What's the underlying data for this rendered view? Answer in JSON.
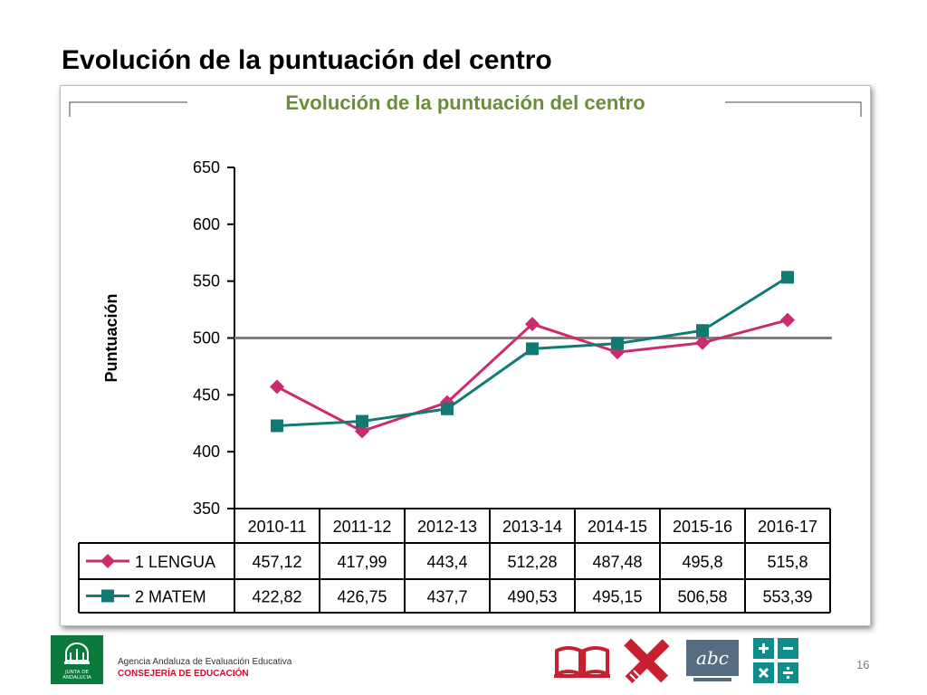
{
  "slide": {
    "title": "Evolución de la puntuación del centro",
    "page_number": "16"
  },
  "footer": {
    "agency_name": "Agencia Andaluza de Evaluación Educativa",
    "agency_sub": "CONSEJERÍA DE EDUCACIÓN",
    "logo_text": "JUNTA DE ANDALUCIA"
  },
  "colors": {
    "title_green": "#6b8e3b",
    "lengua": "#cc2b6c",
    "matem": "#117a72",
    "reference_line": "#7f7f7f",
    "icon_red": "#c8202f",
    "icon_slate": "#566d81",
    "icon_teal": "#0f8c8c"
  },
  "icons": [
    "book-icon",
    "pencil-ruler-icon",
    "abc-board-icon",
    "calculator-icon"
  ],
  "chart_data": {
    "type": "line",
    "title": "Evolución de la puntuación del centro",
    "ylabel": "Puntuación",
    "xlabel": "",
    "ylim": [
      350,
      650
    ],
    "yticks": [
      350,
      400,
      450,
      500,
      550,
      600,
      650
    ],
    "reference_line": 500,
    "grid": false,
    "legend": "table-below",
    "categories": [
      "2010-11",
      "2011-12",
      "2012-13",
      "2013-14",
      "2014-15",
      "2015-16",
      "2016-17"
    ],
    "series": [
      {
        "name": "1 LENGUA",
        "marker": "diamond",
        "values": [
          457.12,
          417.99,
          443.4,
          512.28,
          487.48,
          495.8,
          515.8
        ],
        "labels": [
          "457,12",
          "417,99",
          "443,4",
          "512,28",
          "487,48",
          "495,8",
          "515,8"
        ]
      },
      {
        "name": "2 MATEM",
        "marker": "square",
        "values": [
          422.82,
          426.75,
          437.7,
          490.53,
          495.15,
          506.58,
          553.39
        ],
        "labels": [
          "422,82",
          "426,75",
          "437,7",
          "490,53",
          "495,15",
          "506,58",
          "553,39"
        ]
      }
    ]
  }
}
